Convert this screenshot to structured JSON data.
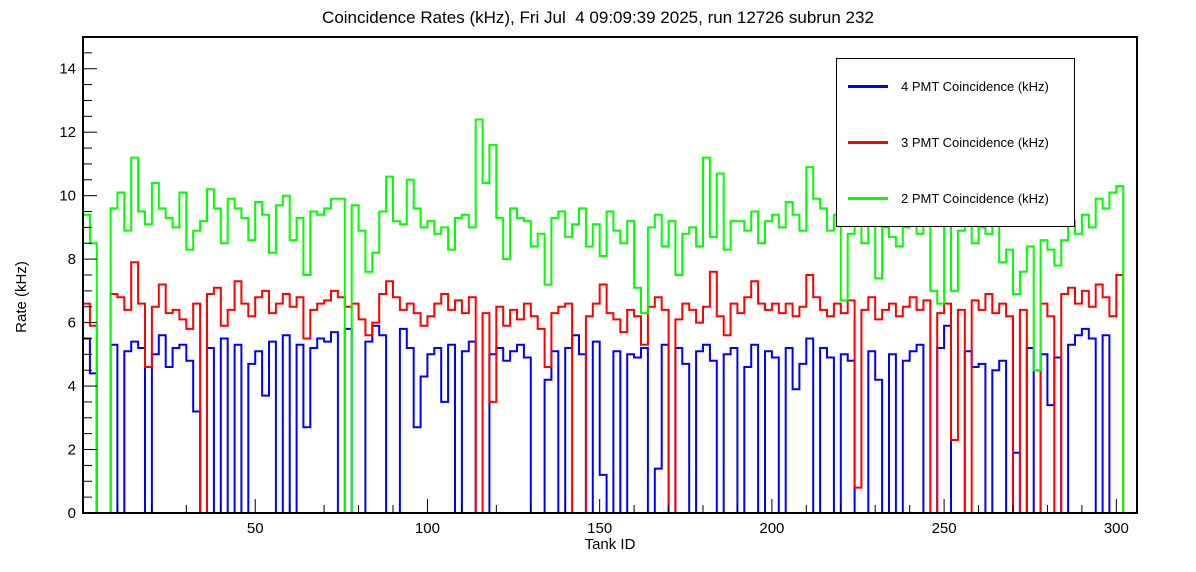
{
  "title": "Coincidence Rates (kHz), Fri Jul  4 09:09:39 2025, run 12726 subrun 232",
  "axes": {
    "x_label": "Tank ID",
    "y_label": "Rate (kHz)",
    "x_ticks": [
      50,
      100,
      150,
      200,
      250,
      300
    ],
    "y_ticks": [
      0,
      2,
      4,
      6,
      8,
      10,
      12,
      14
    ]
  },
  "chart_data": {
    "type": "line",
    "subtype": "step-histogram",
    "title": "Coincidence Rates (kHz), Fri Jul  4 09:09:39 2025, run 12726 subrun 232",
    "xlabel": "Tank ID",
    "ylabel": "Rate (kHz)",
    "legend_position": "top-right",
    "grid": false,
    "x_axis": {
      "min": 0,
      "max": 306,
      "major_ticks": [
        50,
        100,
        150,
        200,
        250,
        300
      ],
      "minor_tick_step": 10
    },
    "y_axis": {
      "min": 0,
      "max": 15,
      "major_ticks": [
        0,
        2,
        4,
        6,
        8,
        10,
        12,
        14
      ],
      "minor_tick_step": 0.5
    },
    "x_start": 0,
    "bin_width": 2,
    "series": [
      {
        "name": "4 PMT Coincidence (kHz)",
        "color": "#0000ff",
        "values": [
          5.5,
          4.4,
          0,
          0,
          5.3,
          0,
          5.1,
          5.4,
          5.2,
          0,
          5.0,
          5.6,
          4.6,
          5.2,
          5.3,
          4.8,
          3.2,
          0,
          5.2,
          0,
          5.5,
          0,
          5.3,
          0,
          4.7,
          5.1,
          3.7,
          5.4,
          0,
          5.6,
          0,
          5.3,
          2.7,
          5.2,
          5.5,
          5.4,
          5.7,
          0,
          5.8,
          0,
          0,
          5.4,
          5.9,
          5.6,
          0,
          0,
          5.8,
          5.2,
          2.7,
          4.3,
          5.0,
          5.2,
          3.5,
          5.3,
          0,
          5.1,
          5.4,
          0,
          0,
          5.0,
          5.2,
          4.8,
          5.1,
          5.3,
          4.9,
          0,
          0,
          4.2,
          5.1,
          0,
          5.2,
          5.6,
          5.0,
          0,
          5.4,
          1.2,
          0,
          5.1,
          0,
          5.0,
          4.9,
          5.2,
          0,
          1.4,
          5.3,
          0,
          5.2,
          4.7,
          0,
          5.1,
          5.3,
          4.8,
          0,
          5.0,
          5.2,
          0,
          4.6,
          5.3,
          0,
          5.1,
          4.9,
          0,
          5.2,
          3.9,
          4.7,
          5.5,
          0,
          5.2,
          4.9,
          0,
          5.0,
          4.8,
          0,
          0,
          5.1,
          4.2,
          0,
          5.0,
          0,
          4.8,
          5.1,
          5.3,
          0,
          0,
          5.2,
          5.9,
          0,
          0,
          5.1,
          4.6,
          4.7,
          0,
          4.5,
          4.8,
          0,
          1.9,
          0,
          5.2,
          0,
          5.0,
          3.4,
          4.9,
          0,
          5.3,
          5.6,
          5.8,
          5.5,
          0,
          5.6,
          0,
          0,
          0,
          0
        ]
      },
      {
        "name": "3 PMT Coincidence (kHz)",
        "color": "#ff0000",
        "values": [
          6.6,
          5.9,
          0,
          0,
          6.9,
          6.8,
          6.4,
          7.9,
          6.6,
          4.6,
          6.5,
          7.2,
          6.3,
          6.4,
          6.1,
          5.8,
          6.6,
          0,
          6.9,
          7.1,
          5.9,
          6.4,
          7.3,
          6.6,
          6.2,
          6.8,
          7.0,
          6.3,
          6.6,
          6.9,
          6.5,
          6.8,
          5.5,
          6.4,
          6.6,
          6.7,
          7.0,
          6.8,
          6.5,
          6.6,
          6.1,
          5.6,
          6.0,
          6.9,
          7.3,
          6.8,
          6.4,
          6.6,
          6.3,
          5.9,
          6.2,
          6.6,
          6.9,
          6.4,
          6.7,
          6.3,
          6.8,
          0,
          6.3,
          3.5,
          6.5,
          5.9,
          6.4,
          6.1,
          6.6,
          6.2,
          5.8,
          4.6,
          6.3,
          6.5,
          6.6,
          0,
          0,
          6.2,
          6.6,
          7.2,
          6.3,
          6.1,
          5.7,
          6.4,
          6.2,
          5.3,
          6.5,
          6.8,
          6.4,
          0,
          6.1,
          6.6,
          6.4,
          6.0,
          6.5,
          7.6,
          6.2,
          5.6,
          6.6,
          6.3,
          6.8,
          7.3,
          6.6,
          6.4,
          6.6,
          6.3,
          6.6,
          6.2,
          6.5,
          7.5,
          6.8,
          6.4,
          6.2,
          6.6,
          6.3,
          6.7,
          0.8,
          6.4,
          6.8,
          6.1,
          6.4,
          6.6,
          6.2,
          6.5,
          6.8,
          6.4,
          6.7,
          0,
          6.3,
          6.6,
          2.3,
          6.4,
          0,
          6.7,
          6.4,
          6.9,
          6.3,
          6.6,
          6.2,
          0,
          6.4,
          0,
          0,
          6.6,
          6.2,
          0,
          6.9,
          7.1,
          6.6,
          7.0,
          6.5,
          7.2,
          6.8,
          6.2,
          7.5,
          0,
          0
        ]
      },
      {
        "name": "2 PMT Coincidence (kHz)",
        "color": "#00ff00",
        "values": [
          9.4,
          8.5,
          0,
          0,
          9.6,
          10.1,
          8.9,
          11.2,
          9.5,
          9.1,
          10.4,
          9.6,
          9.3,
          9.0,
          10.1,
          8.3,
          8.9,
          9.2,
          10.2,
          9.6,
          8.5,
          9.9,
          9.6,
          9.3,
          8.6,
          9.8,
          9.4,
          8.2,
          9.7,
          10.0,
          8.6,
          9.3,
          7.5,
          9.5,
          9.4,
          9.6,
          9.9,
          9.9,
          0,
          9.7,
          8.9,
          7.6,
          8.2,
          9.5,
          10.6,
          9.2,
          9.1,
          10.5,
          9.6,
          9.0,
          9.2,
          8.8,
          9.0,
          8.3,
          9.3,
          9.4,
          9.0,
          12.4,
          10.4,
          11.6,
          9.3,
          8.0,
          9.6,
          9.3,
          9.2,
          8.4,
          8.8,
          7.2,
          9.3,
          9.5,
          8.7,
          9.1,
          9.6,
          8.4,
          9.1,
          8.1,
          9.5,
          8.9,
          8.5,
          9.2,
          7.1,
          6.3,
          9.0,
          9.4,
          8.4,
          9.2,
          7.5,
          8.8,
          9.0,
          8.4,
          11.2,
          8.7,
          10.7,
          8.3,
          9.2,
          9.2,
          8.9,
          9.5,
          8.5,
          9.2,
          9.4,
          9.0,
          9.8,
          9.4,
          8.9,
          10.9,
          9.9,
          9.6,
          8.9,
          9.4,
          6.7,
          8.8,
          9.3,
          8.5,
          9.1,
          7.4,
          9.0,
          8.7,
          8.4,
          9.0,
          9.6,
          8.8,
          9.1,
          7.0,
          6.6,
          10.3,
          7.0,
          8.9,
          9.3,
          8.5,
          9.0,
          8.8,
          9.6,
          7.9,
          8.3,
          6.9,
          7.6,
          8.4,
          4.5,
          8.6,
          8.3,
          7.8,
          8.6,
          9.2,
          8.8,
          9.4,
          9.0,
          9.9,
          9.6,
          10.1,
          10.3,
          0,
          0
        ]
      }
    ]
  }
}
